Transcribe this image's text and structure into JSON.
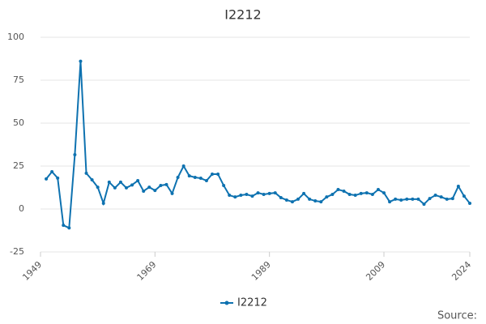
{
  "chart_data": {
    "type": "line",
    "title": "I2212",
    "x": [
      1950,
      1951,
      1952,
      1953,
      1954,
      1955,
      1956,
      1957,
      1958,
      1959,
      1960,
      1961,
      1962,
      1963,
      1964,
      1965,
      1966,
      1967,
      1968,
      1969,
      1970,
      1971,
      1972,
      1973,
      1974,
      1975,
      1976,
      1977,
      1978,
      1979,
      1980,
      1981,
      1982,
      1983,
      1984,
      1985,
      1986,
      1987,
      1988,
      1989,
      1990,
      1991,
      1992,
      1993,
      1994,
      1995,
      1996,
      1997,
      1998,
      1999,
      2000,
      2001,
      2002,
      2003,
      2004,
      2005,
      2006,
      2007,
      2008,
      2009,
      2010,
      2011,
      2012,
      2013,
      2014,
      2015,
      2016,
      2017,
      2018,
      2019,
      2020,
      2021,
      2022,
      2023,
      2024
    ],
    "series": [
      {
        "name": "I2212",
        "color": "#0e72b0",
        "values": [
          17.5,
          21.7,
          18,
          -9.5,
          -11,
          31.6,
          86,
          20.8,
          17,
          12.7,
          3.3,
          15.6,
          12.3,
          15.6,
          12.3,
          14,
          16.5,
          10.4,
          12.7,
          10.8,
          13.7,
          14.2,
          9,
          18.4,
          25,
          19.3,
          18.4,
          17.9,
          16.5,
          20.3,
          20.3,
          13.7,
          8,
          7,
          8,
          8.5,
          7.5,
          9.4,
          8.5,
          9,
          9.4,
          6.6,
          5.2,
          4.2,
          5.7,
          9,
          5.7,
          4.7,
          4.2,
          7,
          8.5,
          11.3,
          10.4,
          8.5,
          8,
          9,
          9.4,
          8.5,
          11.3,
          9.4,
          4.2,
          5.7,
          5.2,
          5.7,
          5.7,
          5.7,
          2.8,
          6.1,
          8,
          7,
          5.7,
          6.1,
          13.2,
          7.5,
          3.3
        ]
      }
    ],
    "xlim": [
      1949,
      2024
    ],
    "xticks": [
      1949,
      1969,
      1989,
      2009,
      2024
    ],
    "ylim": [
      -25,
      100
    ],
    "yticks": [
      -25,
      0,
      25,
      50,
      75,
      100
    ],
    "grid": true,
    "legend": "bottom",
    "source": "Source:"
  }
}
